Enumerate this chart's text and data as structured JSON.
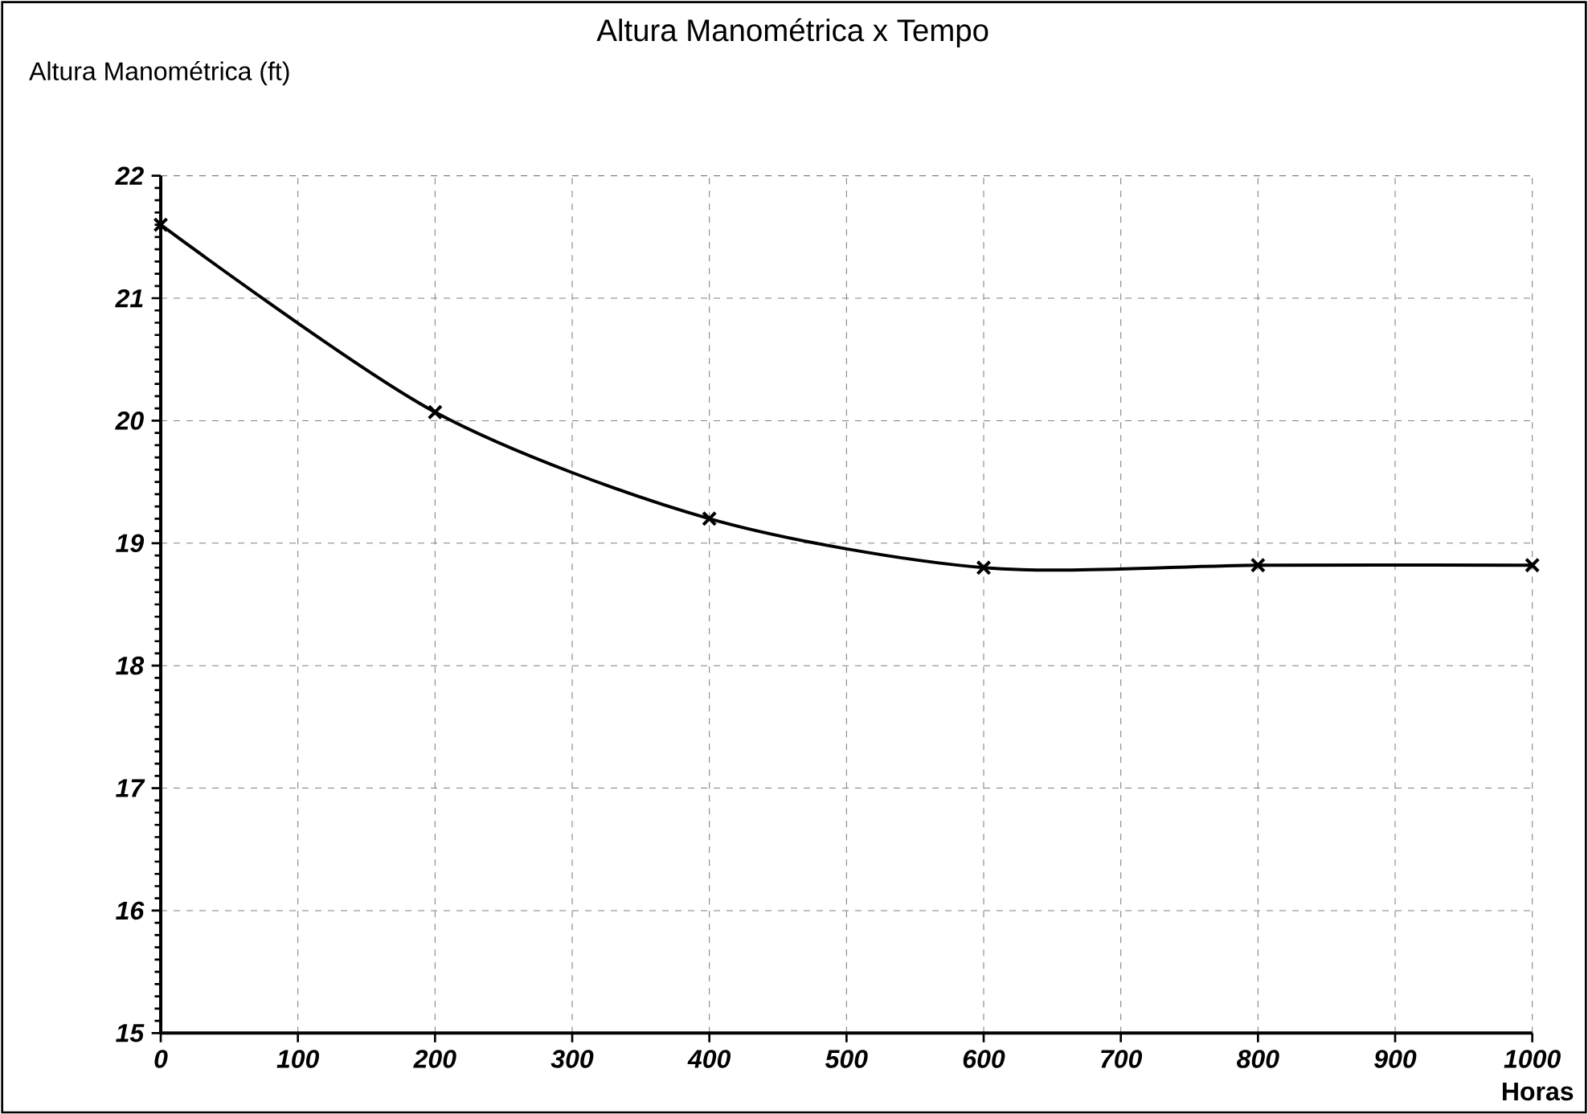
{
  "chart_data": {
    "type": "line",
    "title": "Altura Manométrica x Tempo",
    "xlabel": "Horas",
    "ylabel": "Altura Manométrica (ft)",
    "x": [
      0,
      200,
      400,
      600,
      800,
      1000
    ],
    "series": [
      {
        "color": "#000000",
        "values": [
          21.6,
          20.07,
          19.2,
          18.8,
          18.82,
          18.82
        ]
      }
    ],
    "xlim": [
      0,
      1000
    ],
    "xticks": [
      0,
      100,
      200,
      300,
      400,
      500,
      600,
      700,
      800,
      900,
      1000
    ],
    "ylim": [
      15,
      22
    ],
    "yticks": [
      15,
      16,
      17,
      18,
      19,
      20,
      21,
      22
    ],
    "grid": true,
    "marker": "cross",
    "line_style": "solid"
  }
}
